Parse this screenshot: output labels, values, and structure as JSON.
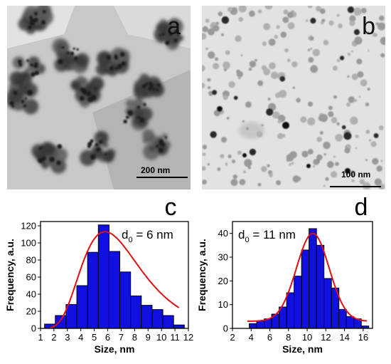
{
  "panels": {
    "a": {
      "letter": "a",
      "scale_bar": "200 nm"
    },
    "b": {
      "letter": "b",
      "scale_bar": "100 nm"
    },
    "c": {
      "letter": "c"
    },
    "d": {
      "letter": "d"
    }
  },
  "colors": {
    "bar_fill": "#1010e0",
    "fit_line": "#e01010",
    "axis": "#000000"
  },
  "chart_data": [
    {
      "type": "bar",
      "panel": "c",
      "annotation_prefix": "d",
      "annotation_sub": "0",
      "annotation_value": " = 6 nm",
      "xlabel": "Size, nm",
      "ylabel": "Frequency, a.u.",
      "xlim": [
        1,
        12
      ],
      "ylim": [
        0,
        125
      ],
      "xticks": [
        1,
        2,
        3,
        4,
        5,
        6,
        7,
        8,
        9,
        10,
        11,
        12
      ],
      "yticks": [
        0,
        20,
        40,
        60,
        80,
        100,
        120
      ],
      "bin_width": 0.8,
      "bins": [
        1.7,
        2.5,
        3.3,
        4.1,
        4.9,
        5.7,
        6.5,
        7.3,
        8.1,
        8.9,
        9.7,
        10.5,
        11.3
      ],
      "values": [
        5,
        15,
        28,
        50,
        89,
        121,
        90,
        66,
        38,
        27,
        22,
        15,
        4
      ],
      "fit": {
        "type": "lognormal",
        "peak_x": 5.8,
        "peak_y": 113,
        "x_range": [
          1.7,
          11.3
        ]
      }
    },
    {
      "type": "bar",
      "panel": "d",
      "annotation_prefix": "d",
      "annotation_sub": "0",
      "annotation_value": " = 11 nm",
      "xlabel": "Size, nm",
      "ylabel": "Frequency, a.u.",
      "xlim": [
        2,
        17
      ],
      "ylim": [
        0,
        45
      ],
      "xticks": [
        2,
        4,
        6,
        8,
        10,
        12,
        14,
        16
      ],
      "yticks": [
        0,
        10,
        20,
        30,
        40
      ],
      "bin_width": 0.8,
      "bins": [
        4.2,
        5.0,
        5.8,
        6.6,
        7.4,
        8.2,
        9.0,
        9.8,
        10.6,
        11.4,
        12.2,
        13.0,
        13.8,
        14.6,
        15.4,
        16.2
      ],
      "values": [
        2,
        3,
        4,
        6,
        9,
        15,
        22,
        33,
        42,
        35,
        21,
        17,
        8,
        5,
        4,
        1
      ],
      "fit": {
        "type": "gauss",
        "center": 10.6,
        "sigma": 1.75,
        "peak_y": 40,
        "base": 3,
        "x_range": [
          3.6,
          16.4
        ]
      }
    }
  ]
}
